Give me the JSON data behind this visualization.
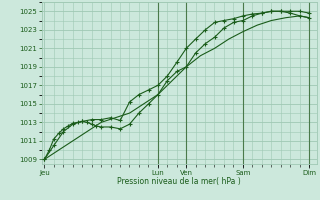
{
  "bg_color": "#cce8dc",
  "grid_color": "#9fc8b4",
  "line_color": "#1a5c1a",
  "marker_color": "#1a5c1a",
  "xlabel": "Pression niveau de la mer( hPa )",
  "ylim": [
    1008.5,
    1026.0
  ],
  "yticks": [
    1009,
    1011,
    1013,
    1015,
    1017,
    1019,
    1021,
    1023,
    1025
  ],
  "x_day_labels": [
    "Jeu",
    "Lun",
    "Ven",
    "Sam",
    "Dim"
  ],
  "x_day_positions": [
    0,
    4.0,
    5.0,
    7.0,
    9.33
  ],
  "xlim": [
    -0.1,
    9.6
  ],
  "series1_x": [
    0,
    0.17,
    0.33,
    0.5,
    0.67,
    0.83,
    1.0,
    1.17,
    1.33,
    1.5,
    1.67,
    1.83,
    2.0,
    2.33,
    2.67,
    3.0,
    3.33,
    3.67,
    4.0,
    4.33,
    4.67,
    5.0,
    5.33,
    5.67,
    6.0,
    6.33,
    6.67,
    7.0,
    7.33,
    7.67,
    8.0,
    8.33,
    8.67,
    9.0,
    9.33
  ],
  "series1_y": [
    1009.0,
    1010.0,
    1011.2,
    1011.8,
    1012.3,
    1012.6,
    1012.9,
    1013.0,
    1013.1,
    1013.0,
    1012.8,
    1012.6,
    1012.5,
    1012.5,
    1012.3,
    1012.8,
    1014.0,
    1015.0,
    1016.0,
    1017.5,
    1018.5,
    1019.0,
    1020.5,
    1021.5,
    1022.2,
    1023.2,
    1023.8,
    1024.0,
    1024.5,
    1024.8,
    1025.0,
    1025.0,
    1025.0,
    1025.0,
    1024.8
  ],
  "series2_x": [
    0,
    0.33,
    0.67,
    1.0,
    1.33,
    1.67,
    2.0,
    2.33,
    2.67,
    3.0,
    3.33,
    3.67,
    4.0,
    4.33,
    4.67,
    5.0,
    5.33,
    5.67,
    6.0,
    6.33,
    6.67,
    7.0,
    7.33,
    7.67,
    8.0,
    8.33,
    8.67,
    9.0,
    9.33
  ],
  "series2_y": [
    1009.0,
    1010.5,
    1012.0,
    1012.8,
    1013.1,
    1013.3,
    1013.3,
    1013.5,
    1013.2,
    1015.2,
    1016.0,
    1016.5,
    1017.0,
    1018.0,
    1019.5,
    1021.0,
    1022.0,
    1023.0,
    1023.8,
    1024.0,
    1024.2,
    1024.5,
    1024.7,
    1024.8,
    1025.0,
    1025.0,
    1024.8,
    1024.5,
    1024.3
  ],
  "series3_x": [
    0,
    0.5,
    1.0,
    1.5,
    2.0,
    2.5,
    3.0,
    3.5,
    4.0,
    4.5,
    5.0,
    5.5,
    6.0,
    6.5,
    7.0,
    7.5,
    8.0,
    8.5,
    9.0,
    9.33
  ],
  "series3_y": [
    1009.0,
    1010.0,
    1011.0,
    1012.0,
    1013.0,
    1013.5,
    1014.0,
    1015.0,
    1016.0,
    1017.5,
    1019.0,
    1020.2,
    1021.0,
    1022.0,
    1022.8,
    1023.5,
    1024.0,
    1024.3,
    1024.5,
    1024.3
  ],
  "vline_positions": [
    4.0,
    5.0,
    7.0,
    9.33
  ],
  "vline_color": "#4a7a4a"
}
